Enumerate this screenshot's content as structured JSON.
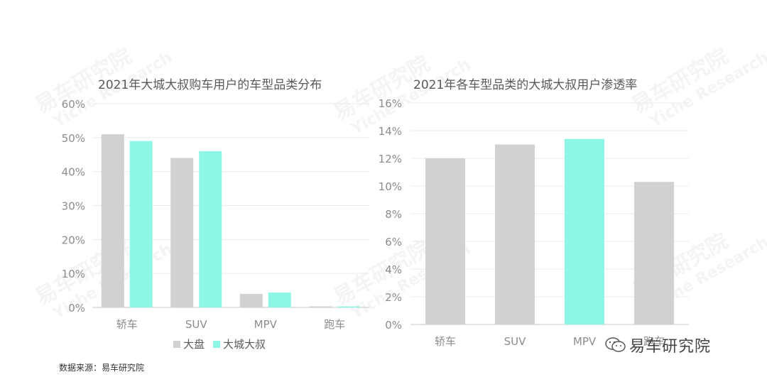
{
  "watermark": {
    "cn": "易车研究院",
    "en": "Yiche Research"
  },
  "source": "数据来源：易车研究院",
  "brand": {
    "name": "易车研究院",
    "icon": "wechat-icon"
  },
  "colors": {
    "gray": "#D0D1D3",
    "teal": "#8DF6E4",
    "grid": "#EBEBEB",
    "axis": "#C8C8C8",
    "tick": "#8C8C8C"
  },
  "chart_data": [
    {
      "type": "bar",
      "title": "2021年大城大叔购车用户的车型品类分布",
      "categories": [
        "轿车",
        "SUV",
        "MPV",
        "跑车"
      ],
      "series": [
        {
          "name": "大盘",
          "color": "#D0D1D3",
          "values": [
            51,
            44,
            4,
            0.3
          ]
        },
        {
          "name": "大城大叔",
          "color": "#8DF6E4",
          "values": [
            49,
            46,
            4.4,
            0.3
          ]
        }
      ],
      "ylim": [
        0,
        60
      ],
      "yticks": [
        "0%",
        "10%",
        "20%",
        "30%",
        "40%",
        "50%",
        "60%"
      ],
      "legend": "bottom"
    },
    {
      "type": "bar",
      "title": "2021年各车型品类的大城大叔用户渗透率",
      "categories": [
        "轿车",
        "SUV",
        "MPV",
        "跑车"
      ],
      "values": [
        12.0,
        13.0,
        13.4,
        10.3
      ],
      "colors": [
        "#D0D1D3",
        "#D0D1D3",
        "#8DF6E4",
        "#D0D1D3"
      ],
      "ylim": [
        0,
        16
      ],
      "yticks": [
        "0%",
        "2%",
        "4%",
        "6%",
        "8%",
        "10%",
        "12%",
        "14%",
        "16%"
      ]
    }
  ]
}
